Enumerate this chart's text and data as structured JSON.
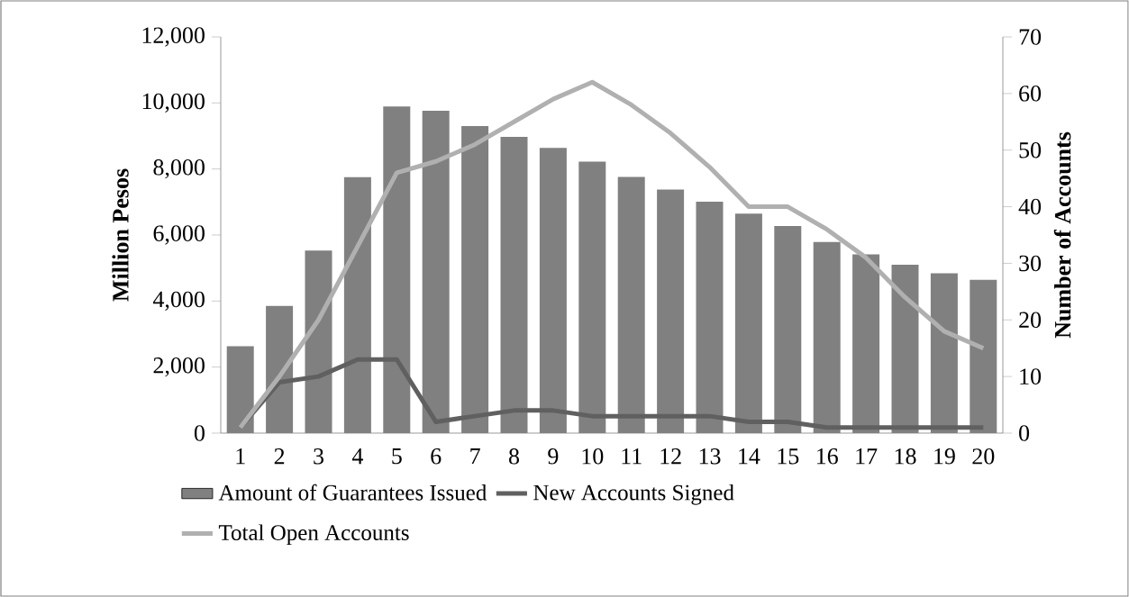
{
  "chart_data": {
    "type": "bar",
    "categories": [
      "1",
      "2",
      "3",
      "4",
      "5",
      "6",
      "7",
      "8",
      "9",
      "10",
      "11",
      "12",
      "13",
      "14",
      "15",
      "16",
      "17",
      "18",
      "19",
      "20"
    ],
    "ylabel": "Million Pesos",
    "y2label": "Number of Accounts",
    "ylim": [
      0,
      12000
    ],
    "yticks": [
      0,
      {
        "value": 2000,
        "label": "2,000"
      },
      {
        "value": 4000,
        "label": "4,000"
      },
      {
        "value": 6000,
        "label": "6,000"
      },
      {
        "value": 8000,
        "label": "8,000"
      },
      {
        "value": 10000,
        "label": "10,000"
      },
      {
        "value": 12000,
        "label": "12,000"
      }
    ],
    "y2lim": [
      0,
      70
    ],
    "y2ticks": [
      0,
      10,
      20,
      30,
      40,
      50,
      60,
      70
    ],
    "legend": "bottom",
    "series": [
      {
        "name": "Amount of Guarantees Issued",
        "color": "#808080",
        "values": [
          2630,
          3850,
          5530,
          7750,
          9890,
          9760,
          9300,
          8970,
          8640,
          8220,
          7760,
          7380,
          7010,
          6650,
          6270,
          5790,
          5410,
          5100,
          4840,
          4640
        ]
      },
      {
        "name": "New Accounts Signed",
        "type": "line",
        "axis": "y2",
        "color": "#606060",
        "values": [
          1,
          9,
          10,
          13,
          13,
          2,
          3,
          4,
          4,
          3,
          3,
          3,
          3,
          2,
          2,
          1,
          1,
          1,
          1,
          1
        ]
      },
      {
        "name": "Total Open Accounts",
        "type": "line",
        "axis": "y2",
        "color": "#b0b0b0",
        "values": [
          1,
          10,
          20,
          33,
          46,
          48,
          51,
          55,
          59,
          62,
          58,
          53,
          47,
          40,
          40,
          36,
          31,
          24,
          18,
          15
        ]
      }
    ]
  }
}
